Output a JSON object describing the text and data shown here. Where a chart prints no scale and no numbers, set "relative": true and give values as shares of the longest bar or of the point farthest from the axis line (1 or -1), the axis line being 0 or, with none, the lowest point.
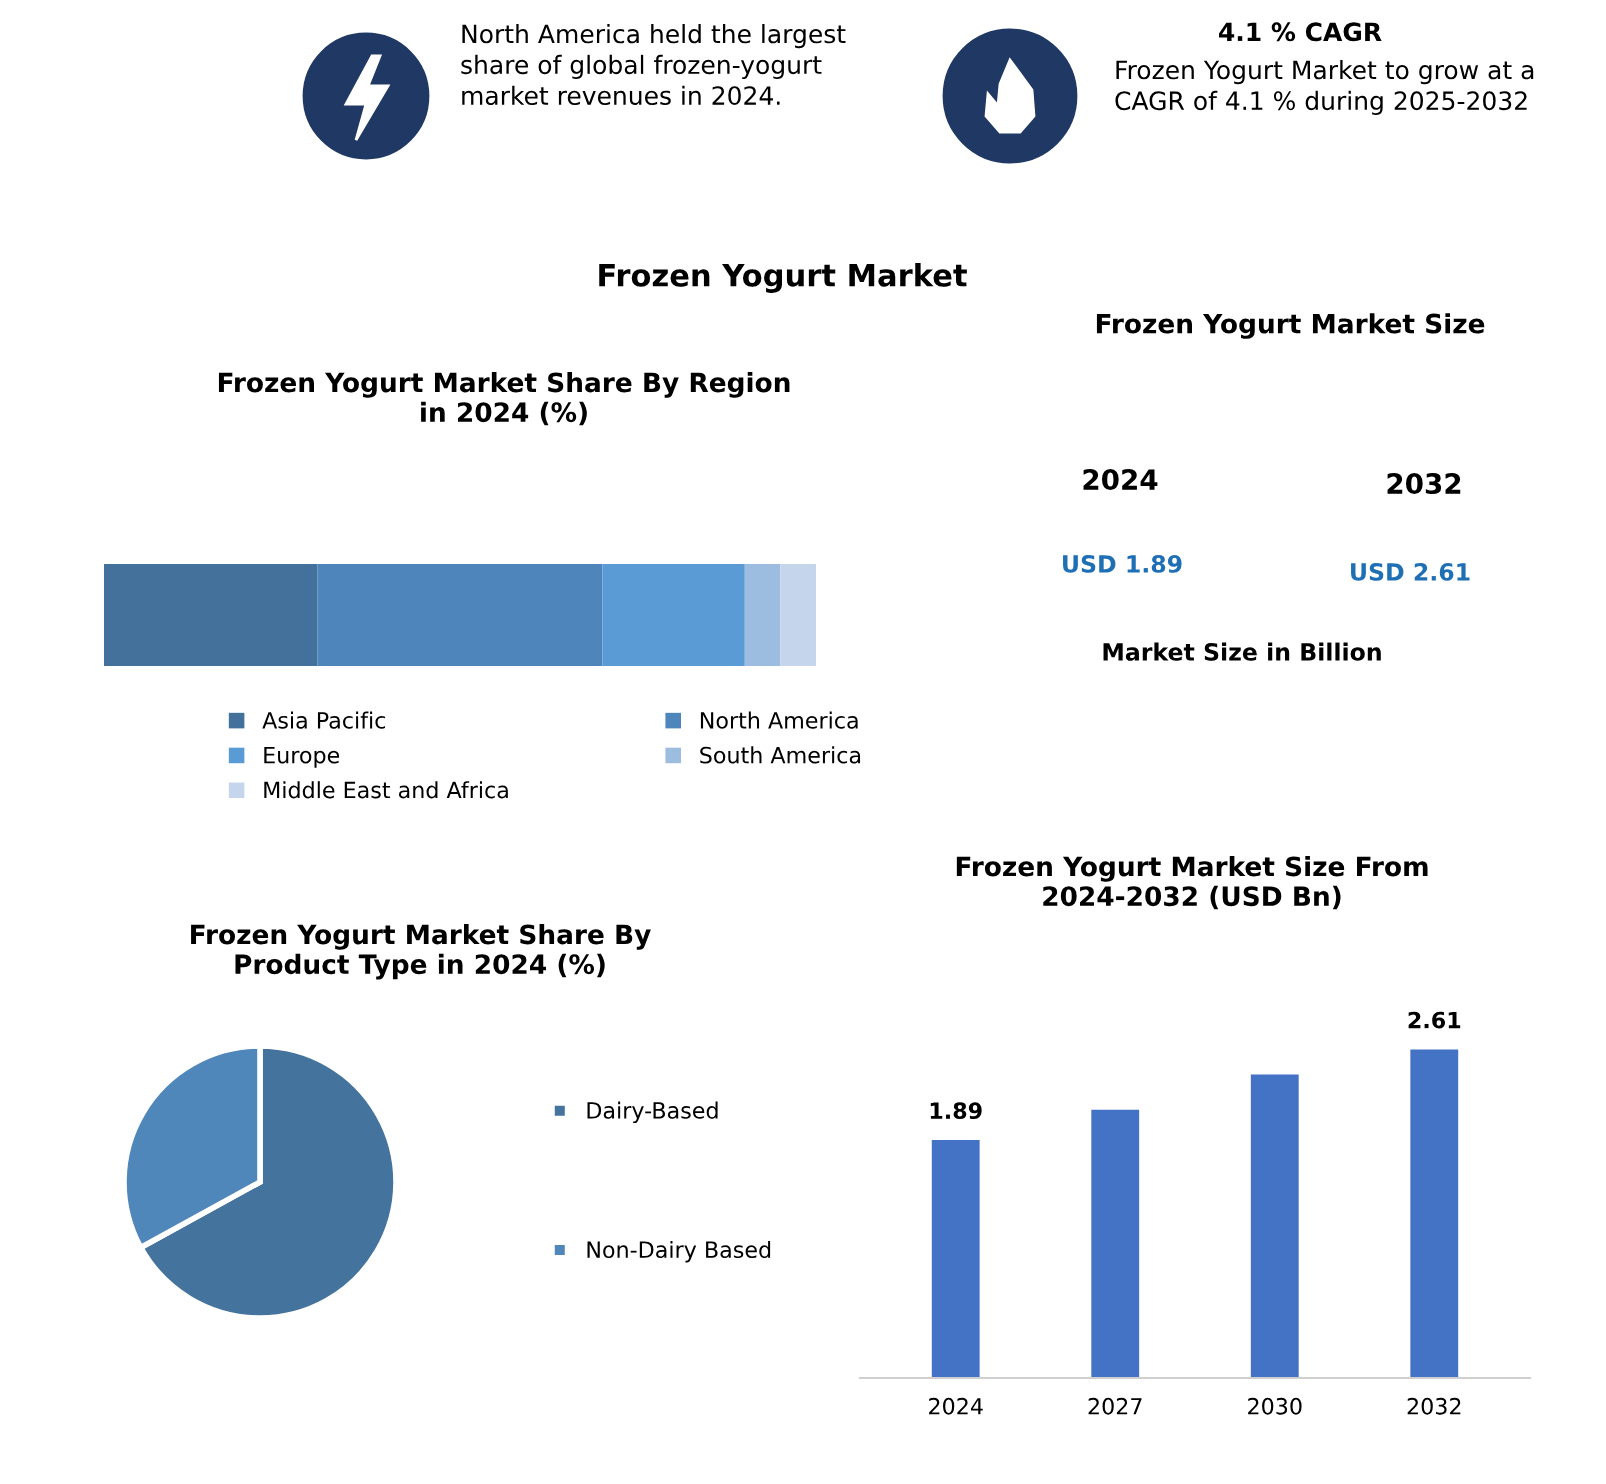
{
  "chart_data": [
    {
      "type": "other",
      "title": "Frozen Yogurt Market",
      "annotations": [
        "North America held the largest share of global frozen-yogurt market revenues in 2024.",
        "4.1 % CAGR",
        "Frozen Yogurt Market to grow at a CAGR of 4.1 % during 2025-2032"
      ]
    },
    {
      "type": "bar",
      "title": "Frozen Yogurt Market Share By Region in 2024 (%)",
      "orientation": "horizontal",
      "stacked": true,
      "relative": true,
      "categories": [
        null
      ],
      "legend": "bottom",
      "series": [
        {
          "name": "Asia Pacific",
          "color": "#44719c",
          "values": [
            0.3
          ]
        },
        {
          "name": "North America",
          "color": "#4e86bb",
          "values": [
            0.4
          ]
        },
        {
          "name": "Europe",
          "color": "#5b9bd5",
          "values": [
            0.2
          ]
        },
        {
          "name": "South America",
          "color": "#9dbde0",
          "values": [
            0.05
          ]
        },
        {
          "name": "Middle East and Africa",
          "color": "#c5d6ec",
          "values": [
            0.05
          ]
        }
      ]
    },
    {
      "type": "other",
      "title": "Frozen Yogurt Market Size",
      "annotations": [
        "2024",
        "USD 1.89",
        "2032",
        "USD 2.61",
        "Market Size in Billion"
      ]
    },
    {
      "type": "pie",
      "title": "Frozen Yogurt Market Share By Product Type in 2024 (%)",
      "categories": [
        "Dairy-Based",
        "Non-Dairy Based"
      ],
      "values": [
        67,
        33
      ],
      "colors": [
        "#44739e",
        "#4f87ba"
      ],
      "legend": "right"
    },
    {
      "type": "bar",
      "title": "Frozen Yogurt Market Size From 2024-2032 (USD Bn)",
      "categories": [
        "2024",
        "2027",
        "2030",
        "2032"
      ],
      "values": [
        1.89,
        2.13,
        2.41,
        2.61
      ],
      "color": "#4472c4",
      "value_labels": [
        "1.89",
        null,
        null,
        "2.61"
      ]
    }
  ]
}
